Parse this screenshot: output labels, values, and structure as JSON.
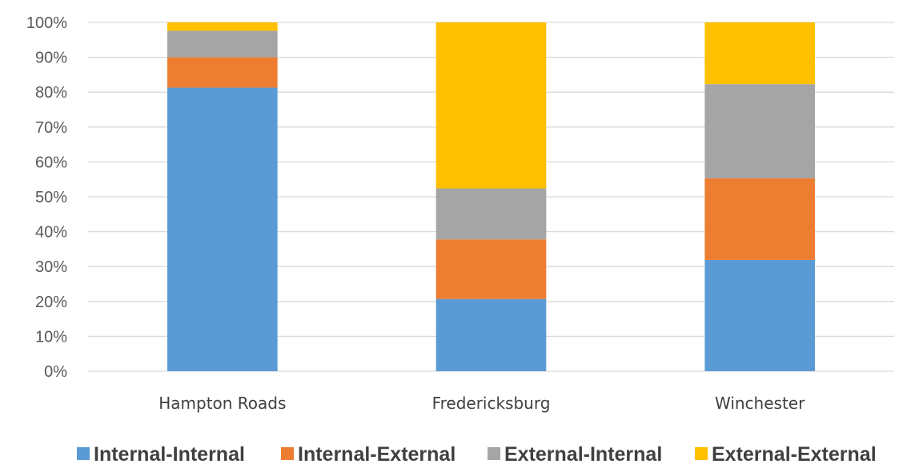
{
  "chart_data": {
    "type": "bar",
    "stacked": true,
    "percent": true,
    "title": "",
    "xlabel": "",
    "ylabel": "",
    "ylim": [
      0,
      100
    ],
    "yticks": [
      "0%",
      "10%",
      "20%",
      "30%",
      "40%",
      "50%",
      "60%",
      "70%",
      "80%",
      "90%",
      "100%"
    ],
    "categories": [
      "Hampton Roads",
      "Fredericksburg",
      "Winchester"
    ],
    "series": [
      {
        "name": "Internal-Internal",
        "color": "#5b9bd5",
        "values": [
          81.3,
          20.7,
          31.9
        ]
      },
      {
        "name": "Internal-External",
        "color": "#ed7d31",
        "values": [
          8.7,
          17.1,
          23.4
        ]
      },
      {
        "name": "External-Internal",
        "color": "#a5a5a5",
        "values": [
          7.6,
          14.6,
          27.0
        ]
      },
      {
        "name": "External-External",
        "color": "#ffc000",
        "values": [
          2.4,
          47.6,
          17.7
        ]
      }
    ],
    "grid": true,
    "legend_position": "bottom"
  }
}
